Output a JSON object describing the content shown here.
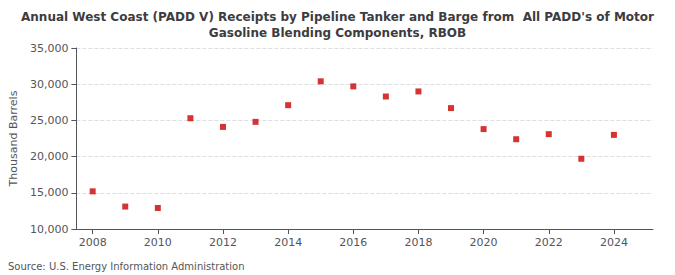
{
  "chart_data": {
    "type": "scatter",
    "title": "Annual West Coast (PADD V) Receipts by Pipeline Tanker and Barge from  All PADD's of Motor\nGasoline Blending Components, RBOB",
    "ylabel": "Thousand Barrels",
    "annotations": [
      "Source: U.S. Energy Information Administration"
    ],
    "x": [
      2008,
      2009,
      2010,
      2011,
      2012,
      2013,
      2014,
      2015,
      2016,
      2017,
      2018,
      2019,
      2020,
      2021,
      2022,
      2023,
      2024
    ],
    "values": [
      15200,
      13100,
      12900,
      25300,
      24100,
      24800,
      27100,
      30400,
      29700,
      28300,
      29000,
      26700,
      23800,
      22400,
      23100,
      19700,
      23000
    ],
    "color": "#CC0000",
    "marker": "square",
    "xlim": [
      2007.5,
      2025.2
    ],
    "xticks": [
      2008,
      2010,
      2012,
      2014,
      2016,
      2018,
      2020,
      2022,
      2024
    ],
    "ylim": [
      10000,
      35000
    ],
    "yticks": [
      {
        "value": 10000,
        "label": "10,000"
      },
      {
        "value": 15000,
        "label": "15,000"
      },
      {
        "value": 20000,
        "label": "20,000"
      },
      {
        "value": 25000,
        "label": "25,000"
      },
      {
        "value": 30000,
        "label": "30,000"
      },
      {
        "value": 35000,
        "label": "35,000"
      }
    ],
    "grid": true
  }
}
